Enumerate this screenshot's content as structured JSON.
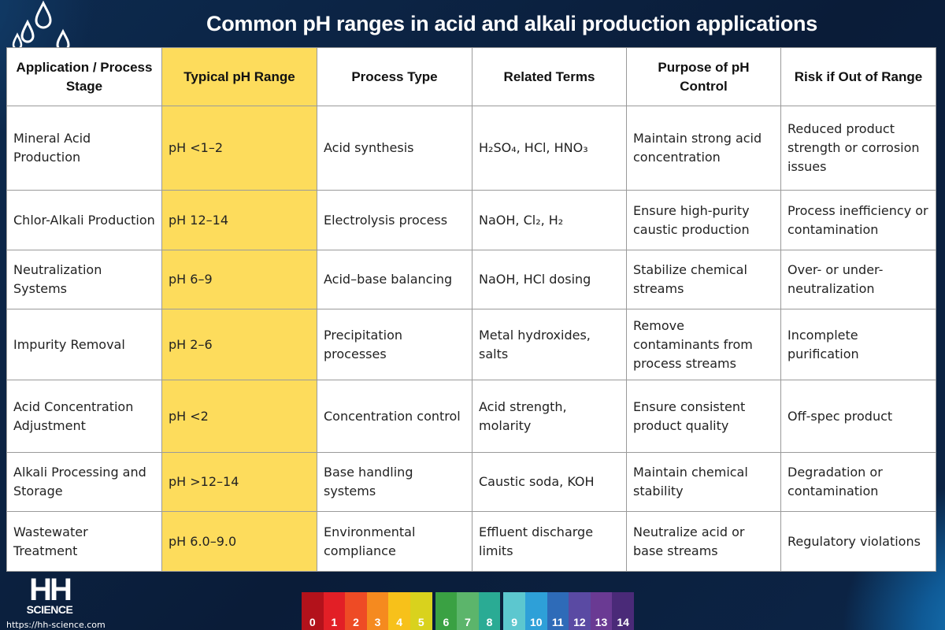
{
  "title": "Common pH ranges in acid and alkali production applications",
  "table": {
    "headers": [
      "Application / Process Stage",
      "Typical pH Range",
      "Process Type",
      "Related Terms",
      "Purpose of pH Control",
      "Risk if Out of Range"
    ],
    "rows": [
      [
        "Mineral Acid Production",
        "pH <1–2",
        "Acid synthesis",
        "H₂SO₄, HCl, HNO₃",
        "Maintain strong acid concentration",
        "Reduced product strength or corrosion issues"
      ],
      [
        "Chlor-Alkali Production",
        "pH 12–14",
        "Electrolysis process",
        "NaOH, Cl₂, H₂",
        "Ensure high-purity caustic production",
        "Process inefficiency or contamination"
      ],
      [
        "Neutralization Systems",
        "pH 6–9",
        "Acid–base balancing",
        "NaOH, HCl dosing",
        "Stabilize chemical streams",
        "Over- or under-neutralization"
      ],
      [
        "Impurity Removal",
        "pH 2–6",
        "Precipitation processes",
        "Metal hydroxides, salts",
        "Remove contaminants from process streams",
        "Incomplete purification"
      ],
      [
        "Acid Concentration Adjustment",
        "pH <2",
        "Concentration control",
        "Acid strength, molarity",
        "Ensure consistent product quality",
        "Off-spec product"
      ],
      [
        "Alkali Processing and Storage",
        "pH >12–14",
        "Base handling systems",
        "Caustic soda, KOH",
        "Maintain chemical stability",
        "Degradation or contamination"
      ],
      [
        "Wastewater Treatment",
        "pH 6.0–9.0",
        "Environmental compliance",
        "Effluent discharge limits",
        "Neutralize acid or base streams",
        "Regulatory violations"
      ]
    ]
  },
  "brand": {
    "logo_text": "HH",
    "logo_subtext": "SCIENCE",
    "url": "https://hh-science.com"
  },
  "ph_scale": {
    "labels": [
      "0",
      "1",
      "2",
      "3",
      "4",
      "5",
      "6",
      "7",
      "8",
      "9",
      "10",
      "11",
      "12",
      "13",
      "14"
    ],
    "colors": [
      "#b3121b",
      "#e21f26",
      "#ee4b25",
      "#f58a1f",
      "#f7c11a",
      "#d9d21d",
      "#3aa143",
      "#5cb56b",
      "#2aab94",
      "#5cc7cf",
      "#2ea0d8",
      "#2e6bb8",
      "#5a4aa3",
      "#6a3a93",
      "#4a2a78"
    ]
  },
  "colors": {
    "background": "#0b1f3d",
    "highlight": "#fddc5c"
  }
}
